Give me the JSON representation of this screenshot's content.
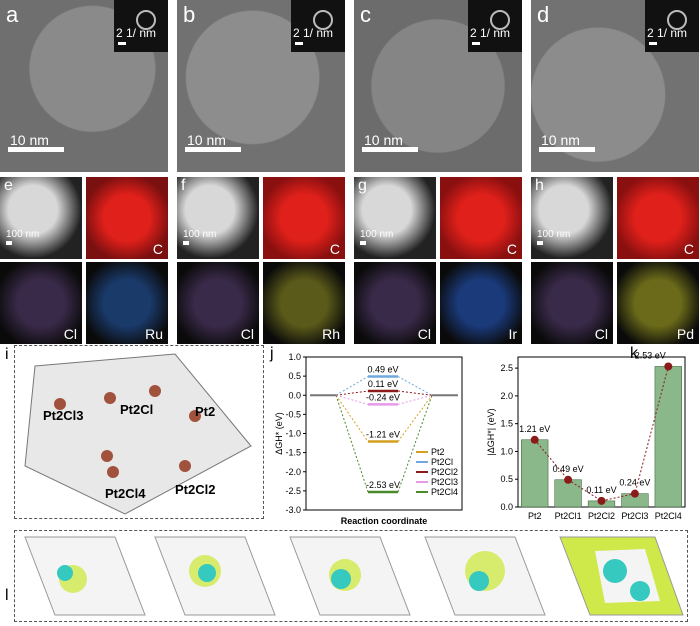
{
  "tem": [
    {
      "letter": "a",
      "scale": "10 nm",
      "inset": "2 1/ nm"
    },
    {
      "letter": "b",
      "scale": "10 nm",
      "inset": "2 1/ nm"
    },
    {
      "letter": "c",
      "scale": "10 nm",
      "inset": "2 1/ nm"
    },
    {
      "letter": "d",
      "scale": "10 nm",
      "inset": "2 1/ nm"
    }
  ],
  "maps": [
    {
      "letter": "e",
      "scale": "100 nm",
      "top": "C",
      "bl": "Cl",
      "br": "Ru"
    },
    {
      "letter": "f",
      "scale": "100 nm",
      "top": "C",
      "bl": "Cl",
      "br": "Rh"
    },
    {
      "letter": "g",
      "scale": "100 nm",
      "top": "C",
      "bl": "Cl",
      "br": "Ir"
    },
    {
      "letter": "h",
      "scale": "100 nm",
      "top": "C",
      "bl": "Cl",
      "br": "Pd"
    }
  ],
  "panel_i": {
    "letter": "i",
    "labels": [
      "Pt2Cl3",
      "Pt2Cl",
      "Pt2",
      "Pt2Cl4",
      "Pt2Cl2"
    ]
  },
  "panel_l": {
    "letter": "l"
  },
  "chart_data": [
    {
      "type": "line",
      "panel": "j",
      "xlabel": "Reaction coordinate",
      "ylabel": "ΔGH* (eV)",
      "ylim": [
        -3.0,
        1.0
      ],
      "yticks": [
        "1.0",
        "0.5",
        "0.0",
        "-0.5",
        "-1.0",
        "-1.5",
        "-2.0",
        "-2.5",
        "-3.0"
      ],
      "series": [
        {
          "name": "Pt2",
          "value": -1.21,
          "label": "-1.21 eV",
          "color": "#d4a020"
        },
        {
          "name": "Pt2Cl",
          "value": 0.49,
          "label": "0.49 eV",
          "color": "#6fa8dc"
        },
        {
          "name": "Pt2Cl2",
          "value": 0.11,
          "label": "0.11 eV",
          "color": "#8b1a1a"
        },
        {
          "name": "Pt2Cl3",
          "value": -0.24,
          "label": "-0.24 eV",
          "color": "#e89ae8"
        },
        {
          "name": "Pt2Cl4",
          "value": -2.53,
          "label": "-2.53 eV",
          "color": "#4a8a2a"
        }
      ]
    },
    {
      "type": "bar",
      "panel": "k",
      "ylabel": "|ΔGH*| (eV)",
      "ylim": [
        0,
        2.7
      ],
      "yticks": [
        "0.0",
        "0.5",
        "1.0",
        "1.5",
        "2.0",
        "2.5"
      ],
      "categories": [
        "Pt2",
        "Pt2Cl1",
        "Pt2Cl2",
        "Pt2Cl3",
        "Pt2Cl4"
      ],
      "values": [
        1.21,
        0.49,
        0.11,
        0.24,
        2.53
      ],
      "labels": [
        "1.21 eV",
        "0.49 eV",
        "0.11 eV",
        "0.24 eV",
        "2.53 eV"
      ],
      "bar_color": "#8ab88a"
    }
  ]
}
